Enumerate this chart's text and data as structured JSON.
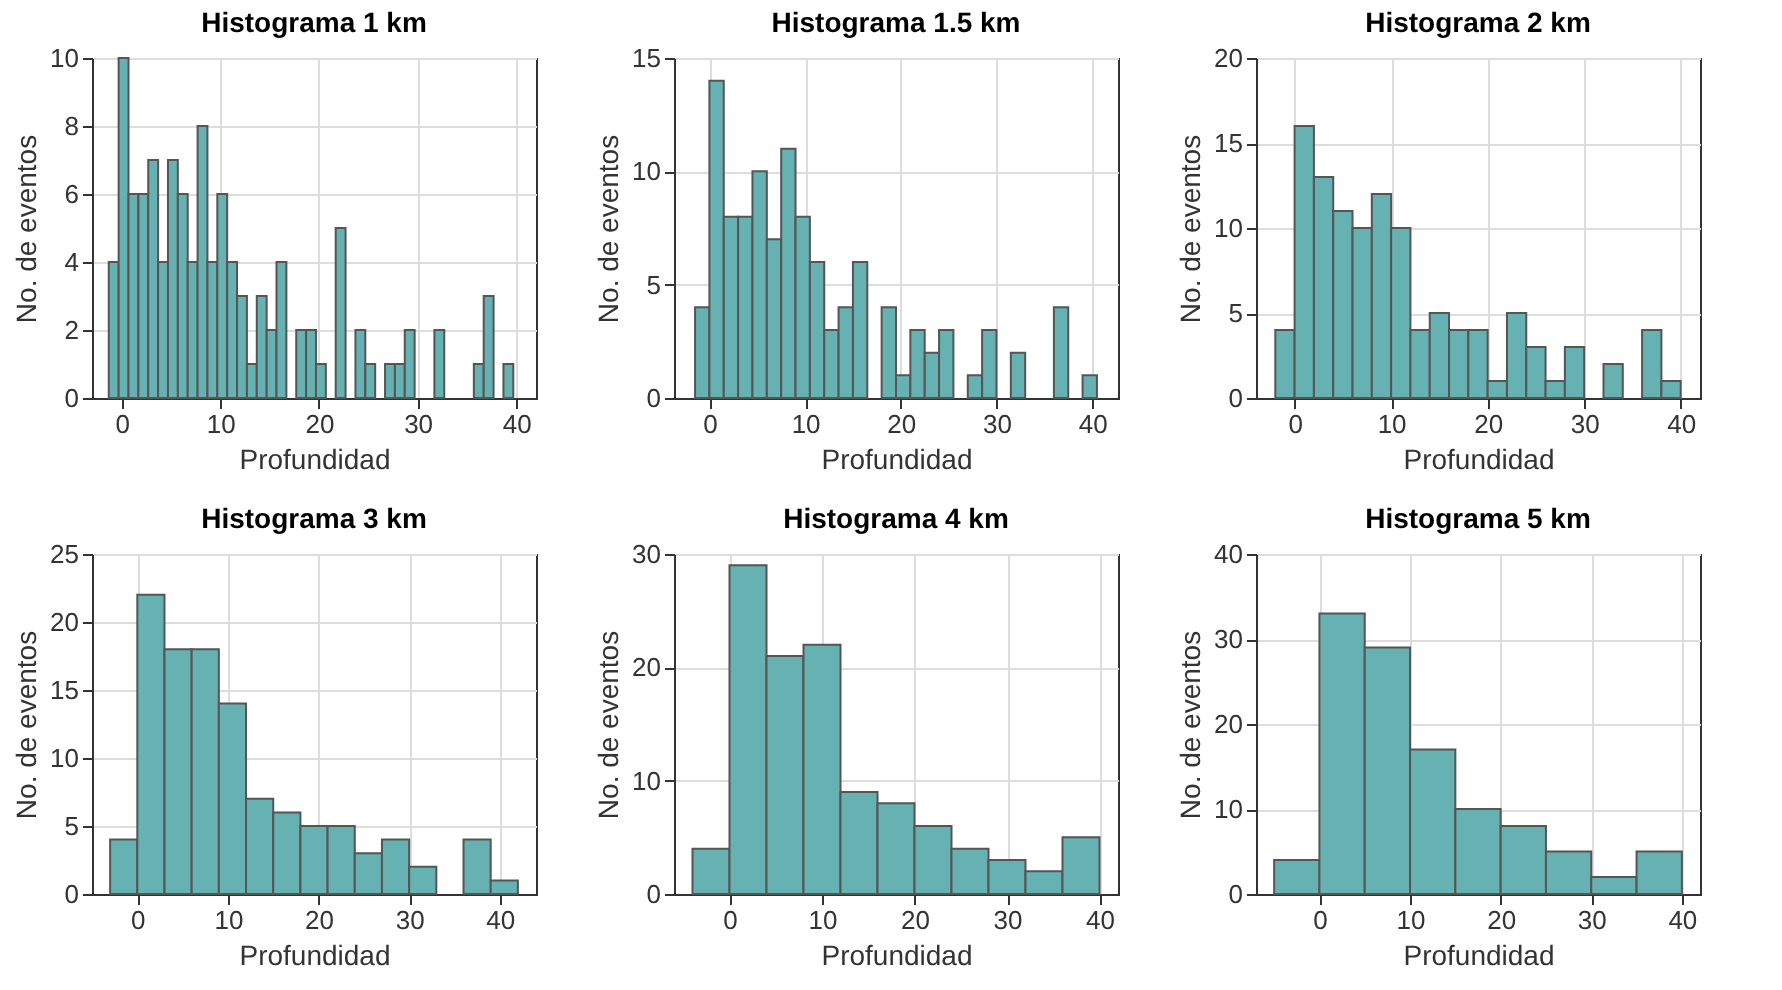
{
  "chart_data": [
    {
      "type": "histogram",
      "title": "Histograma 1 km",
      "xlabel": "Profundidad",
      "ylabel": "No. de eventos",
      "color": "#66b2b2",
      "grid": true,
      "bins": [
        -1.3,
        -0.3,
        0.7,
        1.7,
        2.7,
        3.7,
        4.7,
        5.7,
        6.7,
        7.7,
        8.7,
        9.7,
        10.7,
        11.7,
        12.7,
        13.7,
        14.7,
        15.7,
        16.7,
        17.7,
        18.7,
        19.7,
        20.7,
        21.7,
        22.7,
        23.7,
        24.7,
        25.7,
        26.7,
        27.7,
        28.7,
        29.7,
        30.7,
        31.7,
        32.7,
        33.7,
        34.7,
        35.7,
        36.7,
        37.7,
        38.7,
        39.7
      ],
      "values": [
        4,
        10,
        6,
        6,
        7,
        4,
        7,
        6,
        4,
        8,
        4,
        6,
        4,
        3,
        1,
        3,
        2,
        4,
        0,
        2,
        2,
        1,
        0,
        5,
        0,
        2,
        1,
        0,
        1,
        1,
        2,
        0,
        0,
        2,
        0,
        0,
        0,
        1,
        3,
        0,
        1
      ],
      "xlim": [
        -3,
        42
      ],
      "xticks": [
        0,
        10,
        20,
        30,
        40
      ],
      "ylim": [
        0,
        10
      ],
      "yticks": [
        0,
        2,
        4,
        6,
        8,
        10
      ]
    },
    {
      "type": "histogram",
      "title": "Histograma 1.5 km",
      "xlabel": "Profundidad",
      "ylabel": "No. de eventos",
      "color": "#66b2b2",
      "grid": true,
      "bins": [
        -1.5,
        0,
        1.5,
        3,
        4.5,
        6,
        7.5,
        9,
        10.5,
        12,
        13.5,
        15,
        16.5,
        18,
        19.5,
        21,
        22.5,
        24,
        25.5,
        27,
        28.5,
        30,
        31.5,
        33,
        34.5,
        36,
        37.5,
        39,
        40.5
      ],
      "values": [
        4,
        14,
        8,
        8,
        10,
        7,
        11,
        8,
        6,
        3,
        4,
        6,
        0,
        4,
        1,
        3,
        2,
        3,
        0,
        1,
        3,
        0,
        2,
        0,
        0,
        4,
        0,
        1
      ],
      "xlim": [
        -3.7,
        42.7
      ],
      "xticks": [
        0,
        10,
        20,
        30,
        40
      ],
      "ylim": [
        0,
        15
      ],
      "yticks": [
        0,
        5,
        10,
        15
      ]
    },
    {
      "type": "histogram",
      "title": "Histograma 2 km",
      "xlabel": "Profundidad",
      "ylabel": "No. de eventos",
      "color": "#66b2b2",
      "grid": true,
      "bins": [
        -2,
        0,
        2,
        4,
        6,
        8,
        10,
        12,
        14,
        16,
        18,
        20,
        22,
        24,
        26,
        28,
        30,
        32,
        34,
        36,
        38,
        40
      ],
      "values": [
        4,
        16,
        13,
        11,
        10,
        12,
        10,
        4,
        5,
        4,
        4,
        1,
        5,
        3,
        1,
        3,
        0,
        2,
        0,
        4,
        1
      ],
      "xlim": [
        -4,
        42
      ],
      "xticks": [
        0,
        10,
        20,
        30,
        40
      ],
      "ylim": [
        0,
        20
      ],
      "yticks": [
        0,
        5,
        10,
        15,
        20
      ]
    },
    {
      "type": "histogram",
      "title": "Histograma 3 km",
      "xlabel": "Profundidad",
      "ylabel": "No. de eventos",
      "color": "#66b2b2",
      "grid": true,
      "bins": [
        -3,
        0,
        3,
        6,
        9,
        12,
        15,
        18,
        21,
        24,
        27,
        30,
        33,
        36,
        39,
        42
      ],
      "values": [
        4,
        22,
        18,
        18,
        14,
        7,
        6,
        5,
        5,
        3,
        4,
        2,
        0,
        4,
        1
      ],
      "xlim": [
        -5,
        44
      ],
      "xticks": [
        0,
        10,
        20,
        30,
        40
      ],
      "ylim": [
        0,
        25
      ],
      "yticks": [
        0,
        5,
        10,
        15,
        20,
        25
      ]
    },
    {
      "type": "histogram",
      "title": "Histograma 4 km",
      "xlabel": "Profundidad",
      "ylabel": "No. de eventos",
      "color": "#66b2b2",
      "grid": true,
      "bins": [
        -4,
        0,
        4,
        8,
        12,
        16,
        20,
        24,
        28,
        32,
        36,
        40
      ],
      "values": [
        4,
        29,
        21,
        22,
        9,
        8,
        6,
        4,
        3,
        2,
        5
      ],
      "xlim": [
        -6,
        42
      ],
      "xticks": [
        0,
        10,
        20,
        30,
        40
      ],
      "ylim": [
        0,
        30
      ],
      "yticks": [
        0,
        10,
        20,
        30
      ]
    },
    {
      "type": "histogram",
      "title": "Histograma 5 km",
      "xlabel": "Profundidad",
      "ylabel": "No. de eventos",
      "color": "#66b2b2",
      "grid": true,
      "bins": [
        -5,
        0,
        5,
        10,
        15,
        20,
        25,
        30,
        35,
        40
      ],
      "values": [
        4,
        33,
        29,
        17,
        10,
        8,
        5,
        2,
        5
      ],
      "xlim": [
        -7,
        42
      ],
      "xticks": [
        0,
        10,
        20,
        30,
        40
      ],
      "ylim": [
        0,
        40
      ],
      "yticks": [
        0,
        10,
        20,
        30,
        40
      ]
    }
  ]
}
